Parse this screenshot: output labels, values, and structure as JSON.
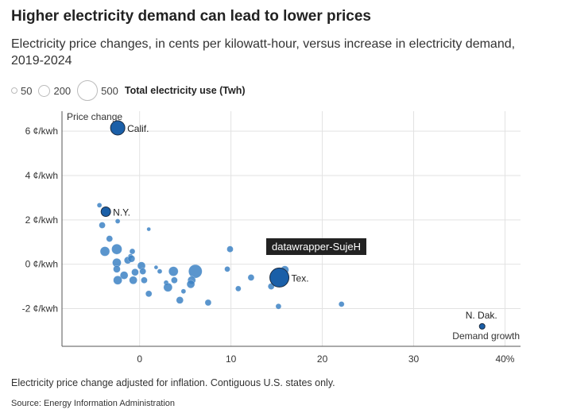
{
  "title": "Higher electricity demand can lead to lower prices",
  "subtitle": "Electricity price changes, in cents per kilowatt-hour, versus increase in electricity demand, 2019-2024",
  "legend": {
    "sizes": [
      {
        "label": "50",
        "value": 50
      },
      {
        "label": "200",
        "value": 200
      },
      {
        "label": "500",
        "value": 500
      }
    ],
    "title": "Total electricity use (Twh)"
  },
  "note": "Electricity price change adjusted for inflation. Contiguous U.S. states only.",
  "source": "Source: Energy Information Administration",
  "tooltip": "datawrapper-SujeH",
  "colors": {
    "point": "#3d82c4",
    "highlight": "#1a5fa8"
  },
  "chart_data": {
    "type": "scatter",
    "title": "Higher electricity demand can lead to lower prices",
    "xlabel": "Demand growth",
    "ylabel": "Price change",
    "xlim": [
      -8.5,
      41.7
    ],
    "ylim": [
      -3.7,
      6.9
    ],
    "xticks": [
      {
        "v": 0,
        "label": "0"
      },
      {
        "v": 10,
        "label": "10"
      },
      {
        "v": 20,
        "label": "20"
      },
      {
        "v": 30,
        "label": "30"
      },
      {
        "v": 40,
        "label": "40%"
      }
    ],
    "yticks": [
      {
        "v": 6,
        "label": "6 ¢/kwh"
      },
      {
        "v": 4,
        "label": "4 ¢/kwh"
      },
      {
        "v": 2,
        "label": "2 ¢/kwh"
      },
      {
        "v": 0,
        "label": "0 ¢/kwh"
      },
      {
        "v": -2,
        "label": "-2 ¢/kwh"
      }
    ],
    "grid": true,
    "points": [
      {
        "x": -4.4,
        "y": 2.66,
        "twh": 31
      },
      {
        "x": -4.1,
        "y": 1.76,
        "twh": 55
      },
      {
        "x": -2.4,
        "y": 1.94,
        "twh": 31
      },
      {
        "x": 1.0,
        "y": 1.58,
        "twh": 21
      },
      {
        "x": -3.3,
        "y": 1.15,
        "twh": 55
      },
      {
        "x": -3.8,
        "y": 0.58,
        "twh": 123
      },
      {
        "x": -2.5,
        "y": 0.68,
        "twh": 145
      },
      {
        "x": -0.8,
        "y": 0.58,
        "twh": 42
      },
      {
        "x": -1.0,
        "y": 0.36,
        "twh": 31
      },
      {
        "x": -1.3,
        "y": 0.18,
        "twh": 69
      },
      {
        "x": -0.9,
        "y": 0.25,
        "twh": 69
      },
      {
        "x": -2.5,
        "y": 0.07,
        "twh": 104
      },
      {
        "x": -2.5,
        "y": -0.22,
        "twh": 69
      },
      {
        "x": 0.2,
        "y": -0.07,
        "twh": 86
      },
      {
        "x": 0.35,
        "y": -0.32,
        "twh": 55
      },
      {
        "x": -0.5,
        "y": -0.36,
        "twh": 69
      },
      {
        "x": -1.7,
        "y": -0.5,
        "twh": 86
      },
      {
        "x": -2.4,
        "y": -0.72,
        "twh": 104
      },
      {
        "x": -0.7,
        "y": -0.72,
        "twh": 86
      },
      {
        "x": 0.5,
        "y": -0.72,
        "twh": 55
      },
      {
        "x": 1.8,
        "y": -0.14,
        "twh": 21
      },
      {
        "x": 2.2,
        "y": -0.32,
        "twh": 31
      },
      {
        "x": 3.7,
        "y": -0.32,
        "twh": 123
      },
      {
        "x": 3.8,
        "y": -0.72,
        "twh": 55
      },
      {
        "x": 2.9,
        "y": -0.83,
        "twh": 31
      },
      {
        "x": 3.1,
        "y": -1.04,
        "twh": 104
      },
      {
        "x": 6.1,
        "y": -0.32,
        "twh": 248
      },
      {
        "x": 5.7,
        "y": -0.72,
        "twh": 86
      },
      {
        "x": 5.6,
        "y": -0.9,
        "twh": 86
      },
      {
        "x": 4.8,
        "y": -1.22,
        "twh": 31
      },
      {
        "x": 4.4,
        "y": -1.62,
        "twh": 69
      },
      {
        "x": 7.5,
        "y": -1.73,
        "twh": 55
      },
      {
        "x": 1.0,
        "y": -1.33,
        "twh": 55
      },
      {
        "x": 9.9,
        "y": 0.68,
        "twh": 55
      },
      {
        "x": 9.6,
        "y": -0.22,
        "twh": 42
      },
      {
        "x": 10.8,
        "y": -1.1,
        "twh": 42
      },
      {
        "x": 12.2,
        "y": -0.6,
        "twh": 55
      },
      {
        "x": 14.4,
        "y": -1.0,
        "twh": 55
      },
      {
        "x": 15.9,
        "y": -0.25,
        "twh": 86
      },
      {
        "x": 15.2,
        "y": -1.9,
        "twh": 42
      },
      {
        "x": 22.1,
        "y": -1.8,
        "twh": 42
      },
      {
        "x": -2.4,
        "y": 6.15,
        "twh": 278,
        "label": "Calif.",
        "highlight": true
      },
      {
        "x": -3.7,
        "y": 2.37,
        "twh": 123,
        "label": "N.Y.",
        "highlight": true
      },
      {
        "x": 15.3,
        "y": -0.6,
        "twh": 494,
        "label": "Tex.",
        "highlight": true
      },
      {
        "x": 37.5,
        "y": -2.8,
        "twh": 42,
        "label": "N. Dak.",
        "highlight": true
      }
    ]
  }
}
